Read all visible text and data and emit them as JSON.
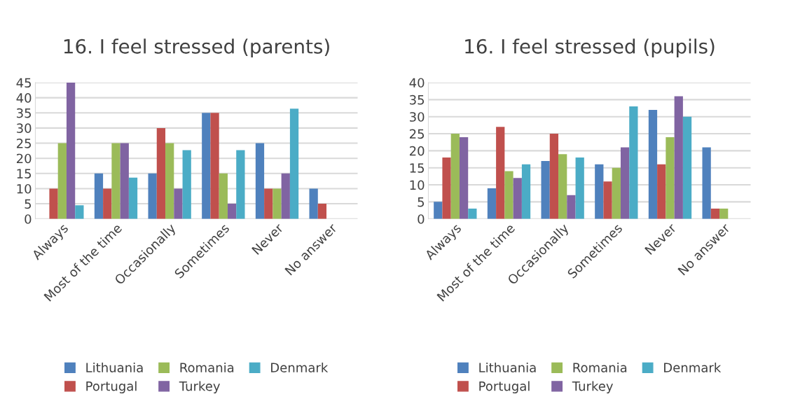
{
  "chart_data": [
    {
      "type": "bar",
      "title": "16. I feel stressed (parents)",
      "categories": [
        "Always",
        "Most of the time",
        "Occasionally",
        "Sometimes",
        "Never",
        "No answer"
      ],
      "ylim": [
        0,
        45
      ],
      "yticks": [
        0,
        5,
        10,
        15,
        20,
        25,
        30,
        35,
        40,
        45
      ],
      "grid": "y",
      "legend": "bottom",
      "series": [
        {
          "name": "Lithuania",
          "color": "#4f81bd",
          "values": [
            0,
            15,
            15,
            35,
            25,
            10
          ]
        },
        {
          "name": "Portugal",
          "color": "#c0504d",
          "values": [
            10,
            10,
            30,
            35,
            10,
            5
          ]
        },
        {
          "name": "Romania",
          "color": "#9bbb59",
          "values": [
            25,
            25,
            25,
            15,
            10,
            0
          ]
        },
        {
          "name": "Turkey",
          "color": "#8064a2",
          "values": [
            45,
            25,
            10,
            5,
            15,
            0
          ]
        },
        {
          "name": "Denmark",
          "color": "#4bacc6",
          "values": [
            4.5,
            13.6,
            22.7,
            22.7,
            36.4,
            0
          ]
        }
      ]
    },
    {
      "type": "bar",
      "title": "16. I feel stressed (pupils)",
      "categories": [
        "Always",
        "Most of the time",
        "Occasionally",
        "Sometimes",
        "Never",
        "No answer"
      ],
      "ylim": [
        0,
        40
      ],
      "yticks": [
        0,
        5,
        10,
        15,
        20,
        25,
        30,
        35,
        40
      ],
      "grid": "y",
      "legend": "bottom",
      "series": [
        {
          "name": "Lithuania",
          "color": "#4f81bd",
          "values": [
            5,
            9,
            17,
            16,
            32,
            21
          ]
        },
        {
          "name": "Portugal",
          "color": "#c0504d",
          "values": [
            18,
            27,
            25,
            11,
            16,
            3
          ]
        },
        {
          "name": "Romania",
          "color": "#9bbb59",
          "values": [
            25,
            14,
            19,
            15,
            24,
            3
          ]
        },
        {
          "name": "Turkey",
          "color": "#8064a2",
          "values": [
            24,
            12,
            7,
            21,
            36,
            0
          ]
        },
        {
          "name": "Denmark",
          "color": "#4bacc6",
          "values": [
            3,
            16,
            18,
            33,
            30,
            0
          ]
        }
      ]
    }
  ]
}
